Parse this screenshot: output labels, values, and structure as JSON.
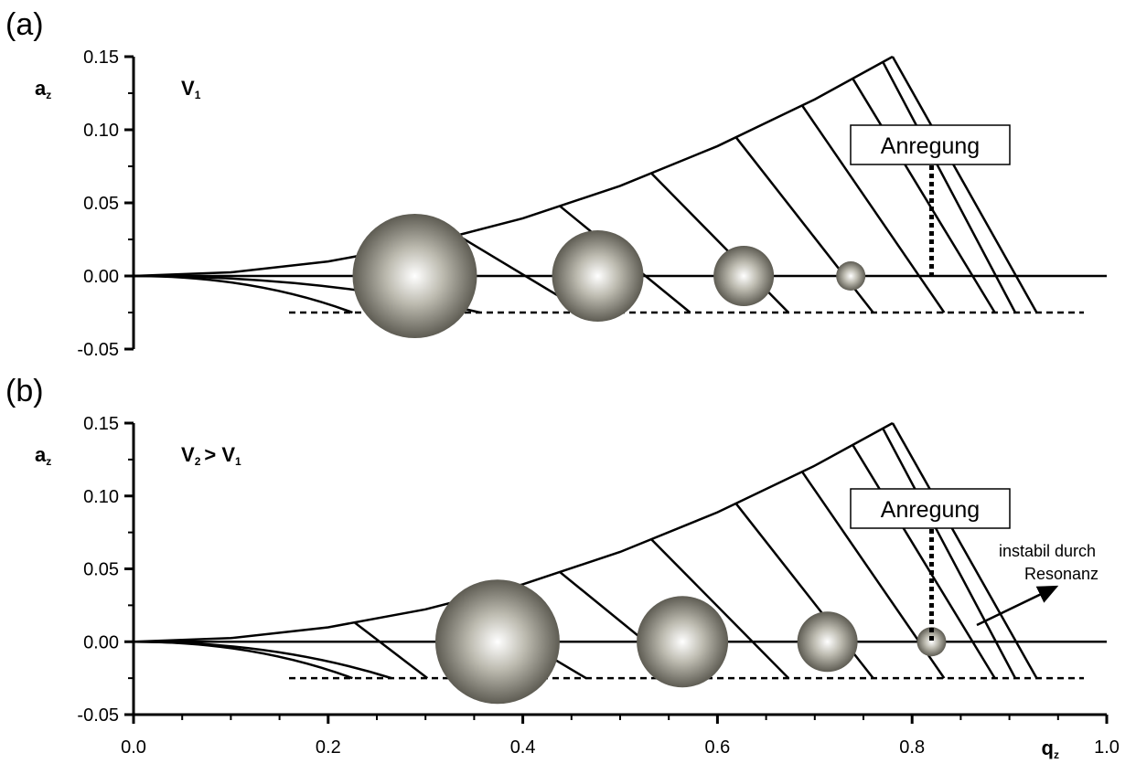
{
  "chart_data": [
    {
      "type": "stability",
      "panel_label": "(a)",
      "y_label": {
        "main": "a",
        "sub": "z"
      },
      "annotation": [
        {
          "main": "V",
          "sub": "1"
        }
      ],
      "ylim": [
        -0.05,
        0.15
      ],
      "yticks": [
        0.15,
        {
          "value": 0.1,
          "label": "0.10"
        },
        0.05,
        {
          "value": 0,
          "label": "0.00"
        },
        -0.05
      ],
      "xlim": [
        0,
        1
      ],
      "boundary": {
        "x": [
          0,
          0.1,
          0.2,
          0.3,
          0.4,
          0.5,
          0.6,
          0.7,
          0.78
        ],
        "values": [
          0,
          0.0025,
          0.0099,
          0.0222,
          0.0394,
          0.0616,
          0.0888,
          0.1208,
          0.15
        ]
      },
      "scan_level": -0.025,
      "ions": {
        "x": [
          0.289,
          0.477,
          0.627,
          0.737
        ],
        "values": [
          0,
          0,
          0,
          0
        ]
      },
      "excitation": {
        "label": "Anregung",
        "x": 0.82
      }
    },
    {
      "type": "stability",
      "panel_label": "(b)",
      "y_label": {
        "main": "a",
        "sub": "z"
      },
      "annotation": [
        {
          "main": "V",
          "sub": "2"
        },
        {
          "main": " > V",
          "sub": "1"
        }
      ],
      "ylim": [
        -0.05,
        0.15
      ],
      "yticks": [
        0.15,
        {
          "value": 0.1,
          "label": "0.10"
        },
        0.05,
        {
          "value": 0,
          "label": "0.00"
        },
        -0.05
      ],
      "xlim": [
        0,
        1
      ],
      "xticks": [
        {
          "value": 0,
          "label": "0.0"
        },
        0.2,
        0.4,
        0.6,
        0.8,
        {
          "value": 1,
          "label": "1.0"
        }
      ],
      "x_label": {
        "main": "q",
        "sub": "z"
      },
      "boundary": {
        "x": [
          0,
          0.1,
          0.2,
          0.3,
          0.4,
          0.5,
          0.6,
          0.7,
          0.78
        ],
        "values": [
          0,
          0.0025,
          0.0099,
          0.0222,
          0.0394,
          0.0616,
          0.0888,
          0.1208,
          0.15
        ]
      },
      "scan_level": -0.025,
      "ions": {
        "x": [
          0.374,
          0.564,
          0.713,
          0.82
        ],
        "values": [
          0,
          0,
          0,
          0
        ]
      },
      "excitation": {
        "label": "Anregung",
        "x": 0.82
      },
      "resonance_note": [
        "instabil durch",
        "Resonanz"
      ]
    }
  ]
}
